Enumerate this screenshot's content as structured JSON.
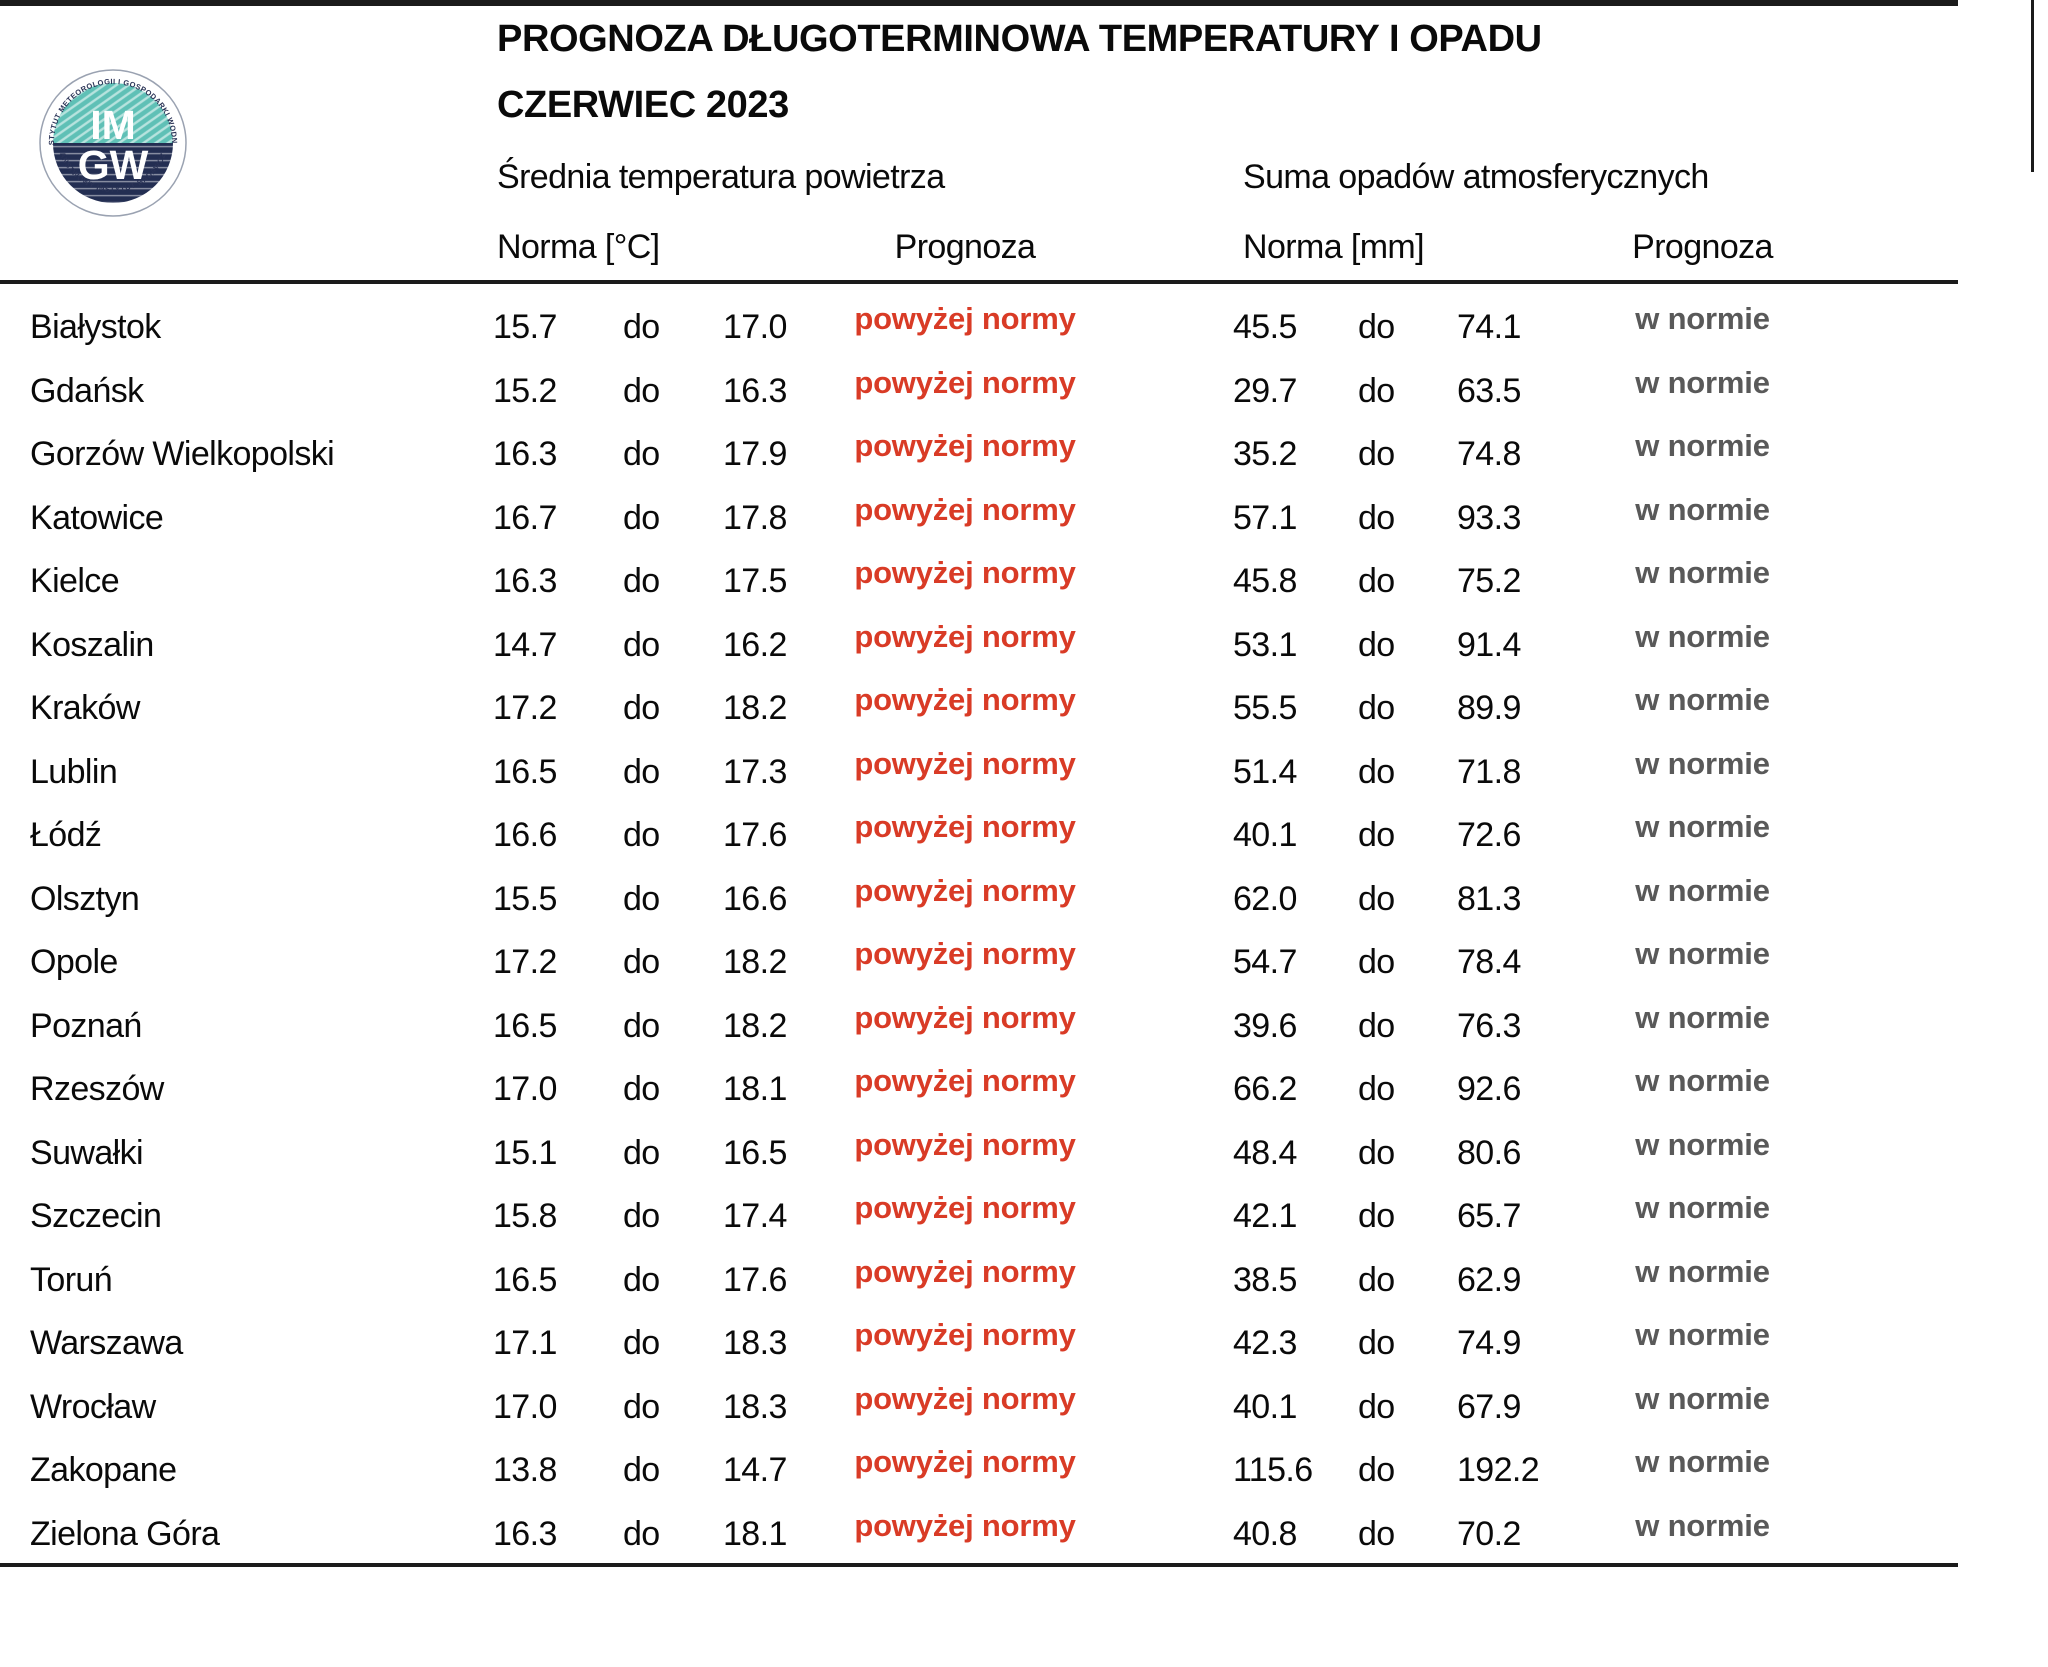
{
  "header": {
    "title": "PROGNOZA DŁUGOTERMINOWA TEMPERATURY I OPADU",
    "subtitle": "CZERWIEC 2023",
    "temp_section": "Średnia temperatura powietrza",
    "precip_section": "Suma opadów atmosferycznych",
    "temp_norm_label": "Norma [°C]",
    "temp_forecast_label": "Prognoza",
    "precip_norm_label": "Norma [mm]",
    "precip_forecast_label": "Prognoza"
  },
  "logo": {
    "line1": "IM",
    "line2": "GW",
    "ring_top": "INSTYTUT METEOROLOGII I GOSPODARKI WODNEJ",
    "ring_bottom": "PAŃSTWOWY INSTYTUT BADAWCZY"
  },
  "colors": {
    "above_norm_red": "#d93b26",
    "in_norm_gray": "#595959",
    "logo_teal": "#5fc0b6",
    "logo_navy": "#232e52",
    "line_black": "#1b1b1b"
  },
  "separator_word": "do",
  "rows": [
    {
      "city": "Białystok",
      "t_min": "15.7",
      "t_max": "17.0",
      "t_forecast": "powyżej normy",
      "p_min": "45.5",
      "p_max": "74.1",
      "p_forecast": "w normie"
    },
    {
      "city": "Gdańsk",
      "t_min": "15.2",
      "t_max": "16.3",
      "t_forecast": "powyżej normy",
      "p_min": "29.7",
      "p_max": "63.5",
      "p_forecast": "w normie"
    },
    {
      "city": "Gorzów Wielkopolski",
      "t_min": "16.3",
      "t_max": "17.9",
      "t_forecast": "powyżej normy",
      "p_min": "35.2",
      "p_max": "74.8",
      "p_forecast": "w normie"
    },
    {
      "city": "Katowice",
      "t_min": "16.7",
      "t_max": "17.8",
      "t_forecast": "powyżej normy",
      "p_min": "57.1",
      "p_max": "93.3",
      "p_forecast": "w normie"
    },
    {
      "city": "Kielce",
      "t_min": "16.3",
      "t_max": "17.5",
      "t_forecast": "powyżej normy",
      "p_min": "45.8",
      "p_max": "75.2",
      "p_forecast": "w normie"
    },
    {
      "city": "Koszalin",
      "t_min": "14.7",
      "t_max": "16.2",
      "t_forecast": "powyżej normy",
      "p_min": "53.1",
      "p_max": "91.4",
      "p_forecast": "w normie"
    },
    {
      "city": "Kraków",
      "t_min": "17.2",
      "t_max": "18.2",
      "t_forecast": "powyżej normy",
      "p_min": "55.5",
      "p_max": "89.9",
      "p_forecast": "w normie"
    },
    {
      "city": "Lublin",
      "t_min": "16.5",
      "t_max": "17.3",
      "t_forecast": "powyżej normy",
      "p_min": "51.4",
      "p_max": "71.8",
      "p_forecast": "w normie"
    },
    {
      "city": "Łódź",
      "t_min": "16.6",
      "t_max": "17.6",
      "t_forecast": "powyżej normy",
      "p_min": "40.1",
      "p_max": "72.6",
      "p_forecast": "w normie"
    },
    {
      "city": "Olsztyn",
      "t_min": "15.5",
      "t_max": "16.6",
      "t_forecast": "powyżej normy",
      "p_min": "62.0",
      "p_max": "81.3",
      "p_forecast": "w normie"
    },
    {
      "city": "Opole",
      "t_min": "17.2",
      "t_max": "18.2",
      "t_forecast": "powyżej normy",
      "p_min": "54.7",
      "p_max": "78.4",
      "p_forecast": "w normie"
    },
    {
      "city": "Poznań",
      "t_min": "16.5",
      "t_max": "18.2",
      "t_forecast": "powyżej normy",
      "p_min": "39.6",
      "p_max": "76.3",
      "p_forecast": "w normie"
    },
    {
      "city": "Rzeszów",
      "t_min": "17.0",
      "t_max": "18.1",
      "t_forecast": "powyżej normy",
      "p_min": "66.2",
      "p_max": "92.6",
      "p_forecast": "w normie"
    },
    {
      "city": "Suwałki",
      "t_min": "15.1",
      "t_max": "16.5",
      "t_forecast": "powyżej normy",
      "p_min": "48.4",
      "p_max": "80.6",
      "p_forecast": "w normie"
    },
    {
      "city": "Szczecin",
      "t_min": "15.8",
      "t_max": "17.4",
      "t_forecast": "powyżej normy",
      "p_min": "42.1",
      "p_max": "65.7",
      "p_forecast": "w normie"
    },
    {
      "city": "Toruń",
      "t_min": "16.5",
      "t_max": "17.6",
      "t_forecast": "powyżej normy",
      "p_min": "38.5",
      "p_max": "62.9",
      "p_forecast": "w normie"
    },
    {
      "city": "Warszawa",
      "t_min": "17.1",
      "t_max": "18.3",
      "t_forecast": "powyżej normy",
      "p_min": "42.3",
      "p_max": "74.9",
      "p_forecast": "w normie"
    },
    {
      "city": "Wrocław",
      "t_min": "17.0",
      "t_max": "18.3",
      "t_forecast": "powyżej normy",
      "p_min": "40.1",
      "p_max": "67.9",
      "p_forecast": "w normie"
    },
    {
      "city": "Zakopane",
      "t_min": "13.8",
      "t_max": "14.7",
      "t_forecast": "powyżej normy",
      "p_min": "115.6",
      "p_max": "192.2",
      "p_forecast": "w normie"
    },
    {
      "city": "Zielona Góra",
      "t_min": "16.3",
      "t_max": "18.1",
      "t_forecast": "powyżej normy",
      "p_min": "40.8",
      "p_max": "70.2",
      "p_forecast": "w normie"
    }
  ]
}
